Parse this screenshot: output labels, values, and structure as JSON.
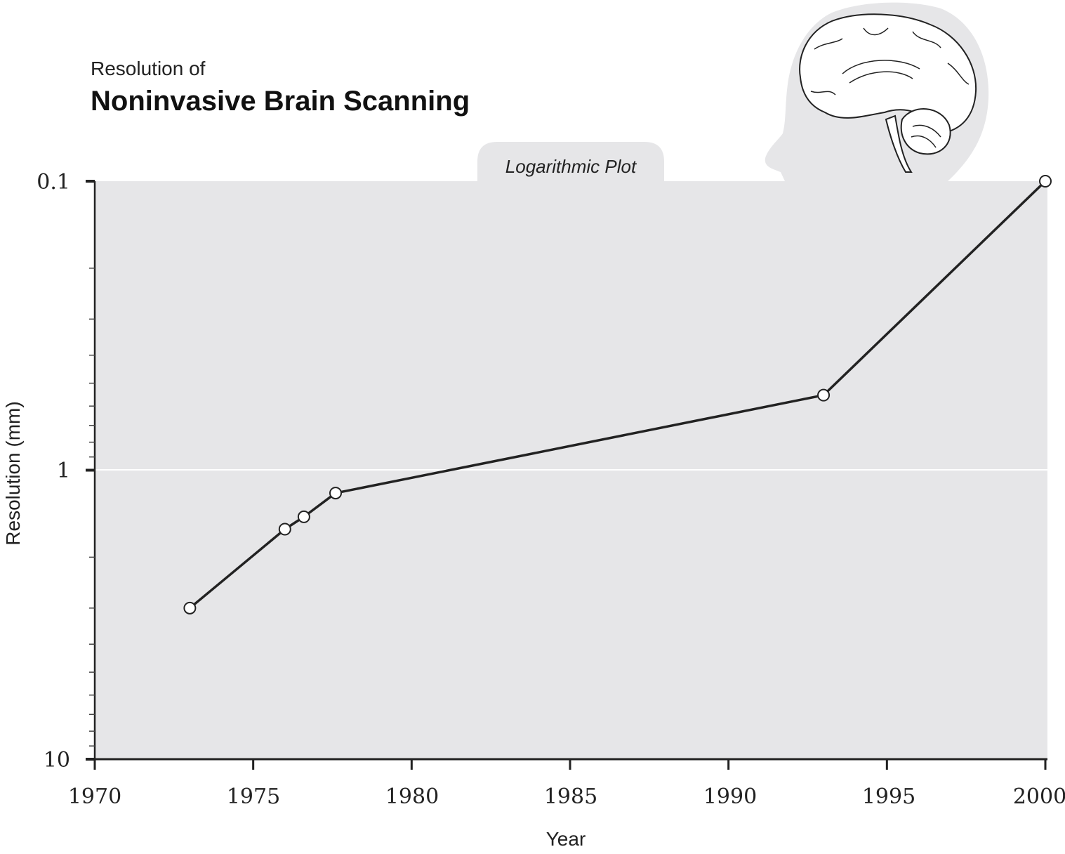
{
  "title": {
    "line1": "Resolution of",
    "line2": "Noninvasive Brain Scanning"
  },
  "badge": "Logarithmic Plot",
  "colors": {
    "plot_background": "#e6e6e8",
    "line": "#222222",
    "marker_fill": "#ffffff",
    "head_silhouette": "#e6e6e8"
  },
  "icons": [
    "brain-head-illustration"
  ],
  "chart_data": {
    "type": "line",
    "title": "Noninvasive Brain Scanning",
    "xlabel": "Year",
    "ylabel": "Resolution (mm)",
    "x_ticks": [
      "1970",
      "1975",
      "1980",
      "1985",
      "1990",
      "1995",
      "2000"
    ],
    "y_ticks": [
      "0.1",
      "1",
      "10"
    ],
    "y_scale": "log",
    "y_inverted": true,
    "xlim": [
      1970,
      2000
    ],
    "ylim": [
      10,
      0.1
    ],
    "grid": "horizontal line at 1",
    "series": [
      {
        "x": [
          1973,
          1976,
          1976.6,
          1977.6,
          1993,
          2000
        ],
        "y": [
          3.0,
          1.6,
          1.45,
          1.2,
          0.55,
          0.1
        ]
      }
    ]
  }
}
